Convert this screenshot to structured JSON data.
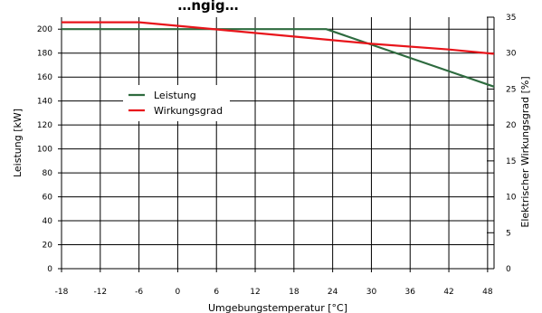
{
  "chart_data": {
    "type": "line",
    "title": "…ngig…",
    "xlabel": "Umgebungstemperatur [°C]",
    "ylabel": "Leistung [kW]",
    "y2label": "Elektrischer Wirkungsgrad [%]",
    "xlim": [
      -18,
      49
    ],
    "ylim": [
      0,
      210
    ],
    "y2lim": [
      0,
      35
    ],
    "x_ticks": [
      -18,
      -12,
      -6,
      0,
      6,
      12,
      18,
      24,
      30,
      36,
      42,
      48
    ],
    "y_ticks": [
      0,
      20,
      40,
      60,
      80,
      100,
      120,
      140,
      160,
      180,
      200
    ],
    "y2_ticks": [
      0,
      5,
      10,
      15,
      20,
      25,
      30,
      35
    ],
    "grid": true,
    "legend_position": "middle-left",
    "series": [
      {
        "name": "Leistung",
        "color": "#2e6b3f",
        "axis": "left",
        "x": [
          -18,
          23,
          49
        ],
        "y": [
          200,
          200,
          152
        ]
      },
      {
        "name": "Wirkungsgrad",
        "color": "#e8151b",
        "axis": "right",
        "x": [
          -18,
          -6,
          6,
          18,
          30,
          42,
          49
        ],
        "y": [
          34.3,
          34.3,
          33.3,
          32.3,
          31.3,
          30.5,
          29.9
        ]
      }
    ]
  }
}
